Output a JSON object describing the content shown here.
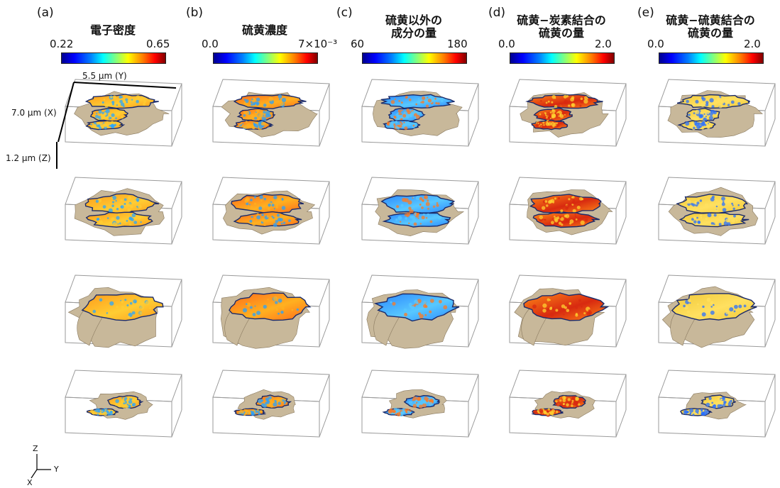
{
  "columns": [
    {
      "id": "a",
      "letter": "(a)",
      "title_lines": [
        "電子密度"
      ],
      "min": "0.22",
      "max": "0.65",
      "palette": "density"
    },
    {
      "id": "b",
      "letter": "(b)",
      "title_lines": [
        "硫黄濃度"
      ],
      "min": "0.0",
      "max": "7×10⁻³",
      "palette": "sulfur"
    },
    {
      "id": "c",
      "letter": "(c)",
      "title_lines": [
        "硫黄以外の",
        "成分の量"
      ],
      "min": "60",
      "max": "180",
      "palette": "other"
    },
    {
      "id": "d",
      "letter": "(d)",
      "title_lines": [
        "硫黄−炭素結合の",
        "硫黄の量"
      ],
      "min": "0.0",
      "max": "2.0",
      "palette": "sc"
    },
    {
      "id": "e",
      "letter": "(e)",
      "title_lines": [
        "硫黄−硫黄結合の",
        "硫黄の量"
      ],
      "min": "0.0",
      "max": "2.0",
      "palette": "ss"
    }
  ],
  "dimensions": {
    "y": "5.5 µm (Y)",
    "x": "7.0 µm (X)",
    "z": "1.2 µm (Z)"
  },
  "axes": {
    "z": "Z",
    "y": "Y",
    "x": "X"
  },
  "colors": {
    "particle": "#c8b89a",
    "box_line": "#9a9a9a",
    "density": [
      "#ff9a1a",
      "#ffcc33",
      "#2aa6ff"
    ],
    "sulfur": [
      "#ff6a1a",
      "#ffb020",
      "#28a0ff"
    ],
    "other": [
      "#2a86ff",
      "#58c8ff",
      "#ff7a20"
    ],
    "sc": [
      "#ff8a18",
      "#d82a10",
      "#ffd030"
    ],
    "ss": [
      "#f0c838",
      "#ffe060",
      "#2a70ff"
    ]
  }
}
